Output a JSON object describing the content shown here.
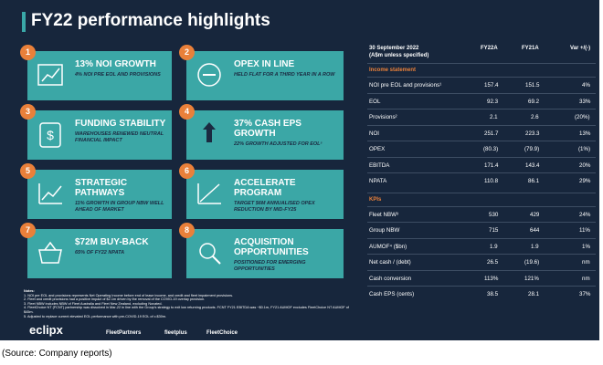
{
  "title": "FY22 performance highlights",
  "cards": [
    {
      "number": "1",
      "title": "13% NOI GROWTH",
      "subtitle": "4% NOI PRE EOL AND PROVISIONS"
    },
    {
      "number": "2",
      "title": "OPEX IN LINE",
      "subtitle": "HELD FLAT FOR A THIRD YEAR IN A ROW"
    },
    {
      "number": "3",
      "title": "FUNDING STABILITY",
      "subtitle": "WAREHOUSES RENEWED NEUTRAL FINANCIAL IMPACT"
    },
    {
      "number": "4",
      "title": "37% CASH EPS GROWTH",
      "subtitle": "22% GROWTH ADJUSTED FOR EOL⁵"
    },
    {
      "number": "5",
      "title": "STRATEGIC PATHWAYS",
      "subtitle": "11% GROWTH IN GROUP NBW WELL AHEAD OF MARKET"
    },
    {
      "number": "6",
      "title": "ACCELERATE PROGRAM",
      "subtitle": "TARGET $6M ANNUALISED OPEX REDUCTION BY MID-FY25"
    },
    {
      "number": "7",
      "title": "$72M BUY-BACK",
      "subtitle": "65% OF FY22 NPATA"
    },
    {
      "number": "8",
      "title": "ACQUISITION OPPORTUNITIES",
      "subtitle": "POSITIONED FOR EMERGING OPPORTUNITIES"
    }
  ],
  "table": {
    "period": "30 September 2022",
    "units": "(A$m unless specified)",
    "columns": [
      "FY22A",
      "FY21A",
      "Var +/(-)"
    ],
    "sections": [
      {
        "title": "Income statement",
        "rows": [
          [
            "NOI pre EOL and provisions¹",
            "157.4",
            "151.5",
            "4%"
          ],
          [
            "EOL",
            "92.3",
            "69.2",
            "33%"
          ],
          [
            "Provisions²",
            "2.1",
            "2.6",
            "(20%)"
          ],
          [
            "NOI",
            "251.7",
            "223.3",
            "13%"
          ],
          [
            "OPEX",
            "(80.3)",
            "(79.9)",
            "(1%)"
          ],
          [
            "EBITDA",
            "171.4",
            "143.4",
            "20%"
          ],
          [
            "NPATA",
            "110.8",
            "86.1",
            "29%"
          ]
        ]
      },
      {
        "title": "KPIs",
        "rows": [
          [
            "Fleet NBW³",
            "530",
            "429",
            "24%"
          ],
          [
            "Group NBW",
            "715",
            "644",
            "11%"
          ],
          [
            "AUMOF⁴ ($bn)",
            "1.9",
            "1.9",
            "1%"
          ],
          [
            "Net cash / (debt)",
            "26.5",
            "(19.6)",
            "nm"
          ],
          [
            "Cash conversion",
            "113%",
            "121%",
            "nm"
          ],
          [
            "Cash EPS (cents)",
            "38.5",
            "28.1",
            "37%"
          ]
        ]
      }
    ]
  },
  "notes": {
    "title": "Notes:",
    "items": [
      "1.    NOI pre EOL and provisions represents Net Operating Income before end of lease income, and credit and fleet impairment provisions.",
      "2.    Fleet and credit provisions had a positive impact of $2.1m driven by the removal of the COVID-19 overlay provision.",
      "3.    Fleet NBW includes NBW of Fleet Australia and Fleet New Zealand, excluding Novated.",
      "4.    FleetChoice NT (FCNT) partnership was dissolved in Mar-22 in line with the Group's strategy to exit low returning products. FCNT FY21 EBITDA was ~$0.1m, FY21 AUMOF excludes FleetChoice NT AUMOF of $45m.",
      "5.    Adjusted to replace current elevated EOL performance with pre-COVID-19 EOL of c.$30m."
    ]
  },
  "logos": [
    "eclipx",
    "FleetPartners",
    "fleetplus",
    "FleetChoice"
  ],
  "source": "(Source: Company reports)"
}
